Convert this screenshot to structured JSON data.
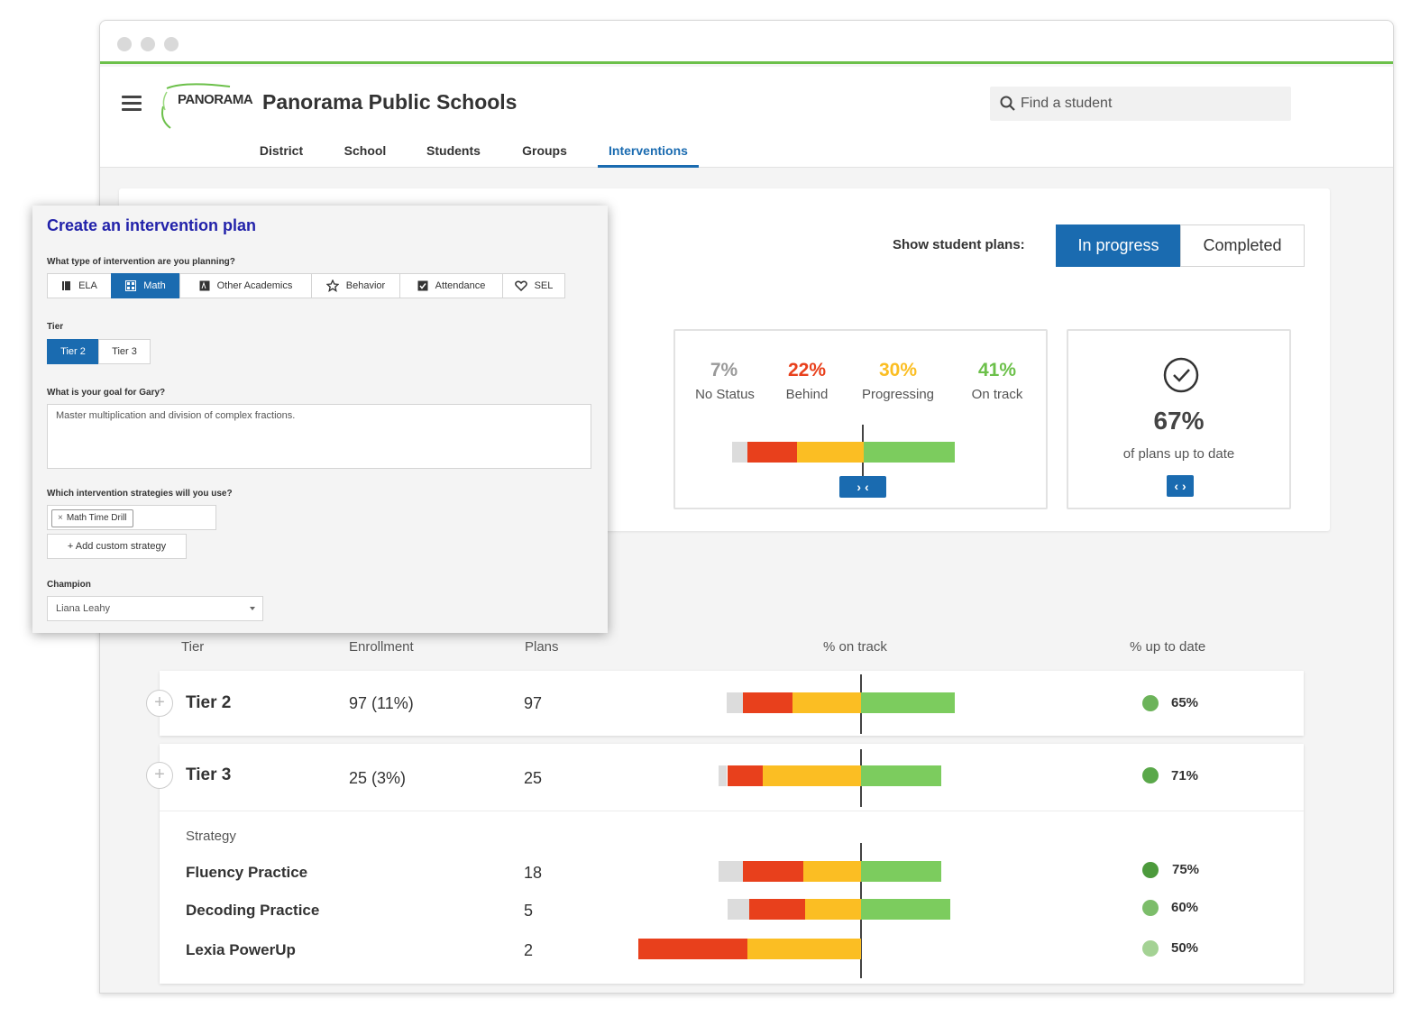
{
  "header": {
    "logo_text": "PANORAMA",
    "title": "Panorama Public Schools",
    "search_placeholder": "Find a student"
  },
  "nav": {
    "tabs": [
      {
        "label": "District"
      },
      {
        "label": "School"
      },
      {
        "label": "Students"
      },
      {
        "label": "Groups"
      },
      {
        "label": "Interventions",
        "active": true
      }
    ]
  },
  "filters": {
    "show_label": "Show student plans:",
    "options": [
      {
        "label": "In progress",
        "active": true
      },
      {
        "label": "Completed",
        "active": false
      }
    ]
  },
  "summary": {
    "stats": [
      {
        "pct": "7%",
        "label": "No Status",
        "color": "#999999"
      },
      {
        "pct": "22%",
        "label": "Behind",
        "color": "#e8401c"
      },
      {
        "pct": "30%",
        "label": "Progressing",
        "color": "#fbbe23"
      },
      {
        "pct": "41%",
        "label": "On track",
        "color": "#6cc04a"
      }
    ],
    "bar": {
      "no_status": 7,
      "behind": 22,
      "progressing": 30,
      "on_track": 41
    },
    "expand_glyph": "› ‹",
    "uptodate_pct": "67%",
    "uptodate_label": "of plans up to date",
    "collapse_glyph": "‹ ›"
  },
  "colors": {
    "accent": "#1a6bb0",
    "no_status": "#dcdcdc",
    "behind": "#e8401c",
    "progressing": "#fbbe23",
    "on_track": "#7ccc5e"
  },
  "table": {
    "headers": {
      "tier": "Tier",
      "enrollment": "Enrollment",
      "plans": "Plans",
      "on_track": "% on track",
      "up_to_date": "% up to date"
    },
    "rows": [
      {
        "tier": "Tier 2",
        "enrollment": "97 (11%)",
        "plans": "97",
        "up_to_date": "65%",
        "dot_color": "#6cb35a",
        "bar": {
          "no_status": 7,
          "behind": 22,
          "progressing": 30,
          "on_track": 41
        }
      },
      {
        "tier": "Tier 3",
        "enrollment": "25 (3%)",
        "plans": "25",
        "up_to_date": "71%",
        "dot_color": "#5aa84a",
        "bar": {
          "no_status": 4,
          "behind": 16,
          "progressing": 44,
          "on_track": 36
        }
      }
    ],
    "strategy_header": "Strategy",
    "strategies": [
      {
        "name": "Fluency Practice",
        "plans": "18",
        "up_to_date": "75%",
        "dot_color": "#4c9a3c",
        "bar": {
          "no_status": 11,
          "behind": 27,
          "progressing": 26,
          "on_track": 36
        }
      },
      {
        "name": "Decoding Practice",
        "plans": "5",
        "up_to_date": "60%",
        "dot_color": "#7cbd6a",
        "bar": {
          "no_status": 10,
          "behind": 25,
          "progressing": 25,
          "on_track": 40
        }
      },
      {
        "name": "Lexia PowerUp",
        "plans": "2",
        "up_to_date": "50%",
        "dot_color": "#a4d294",
        "bar": {
          "no_status": 0,
          "behind": 49,
          "progressing": 51,
          "on_track": 0
        }
      }
    ]
  },
  "modal": {
    "title": "Create an intervention plan",
    "type_label": "What type of intervention are you planning?",
    "types": [
      {
        "label": "ELA",
        "icon": "book-icon"
      },
      {
        "label": "Math",
        "icon": "calculator-icon",
        "active": true
      },
      {
        "label": "Other Academics",
        "icon": "academics-icon"
      },
      {
        "label": "Behavior",
        "icon": "star-icon"
      },
      {
        "label": "Attendance",
        "icon": "checkbox-icon"
      },
      {
        "label": "SEL",
        "icon": "heart-icon"
      }
    ],
    "tier_label": "Tier",
    "tiers": [
      {
        "label": "Tier 2",
        "active": true
      },
      {
        "label": "Tier 3",
        "active": false
      }
    ],
    "goal_label": "What is your goal for Gary?",
    "goal_value": "Master multiplication and division of complex fractions.",
    "strategies_label": "Which intervention strategies will you use?",
    "strategy_tag": "Math Time Drill",
    "strategy_tag_remove": "×",
    "add_strategy": "+ Add custom strategy",
    "champion_label": "Champion",
    "champion_value": "Liana Leahy"
  }
}
